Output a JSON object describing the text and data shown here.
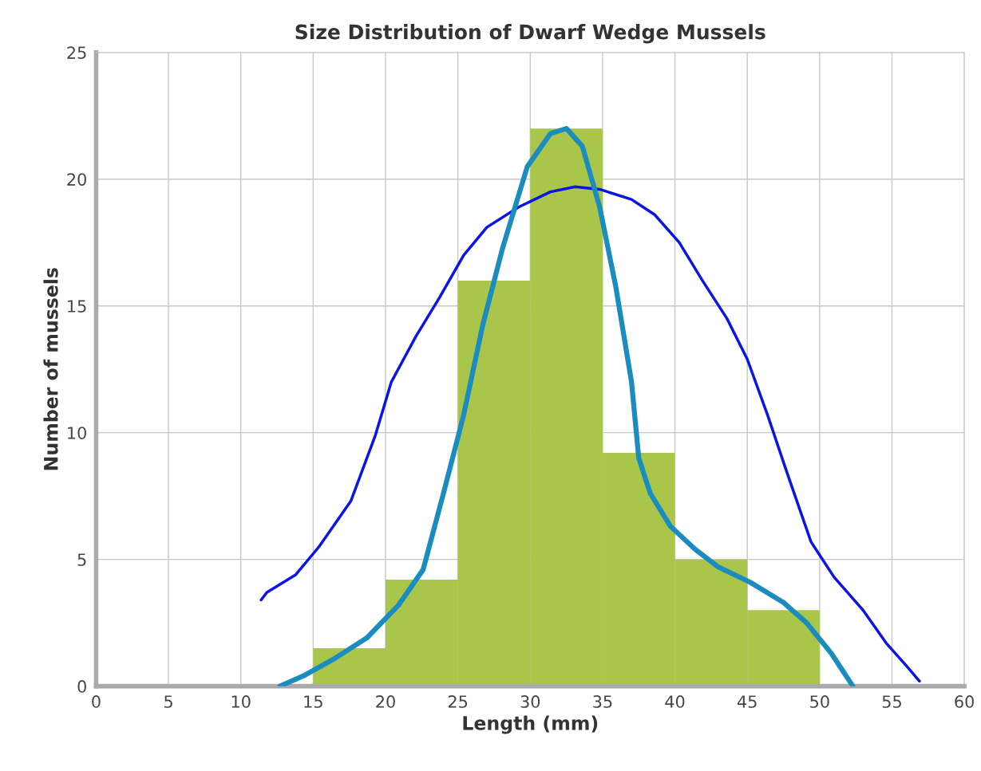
{
  "chart_data": {
    "type": "histogram",
    "title": "Size Distribution of Dwarf Wedge Mussels",
    "xlabel": "Length (mm)",
    "ylabel": "Number of mussels",
    "bins": [
      15,
      20,
      25,
      30,
      35,
      40,
      45,
      50
    ],
    "values": [
      1.5,
      4.2,
      16,
      22,
      9.2,
      5,
      3
    ],
    "color": "#a9c64a",
    "series": [
      {
        "type": "line",
        "color": "#0a14e6",
        "x": [
          11.4,
          11.8,
          13.8,
          15.4,
          17.6,
          19.3,
          20.4,
          22.1,
          23.7,
          25.4,
          27.0,
          29.2,
          31.4,
          33.1,
          34.8,
          37.0,
          38.6,
          40.3,
          41.9,
          43.6,
          45.0,
          46.4,
          47.7,
          49.4,
          51.0,
          53.0,
          54.6,
          56.0,
          56.9
        ],
        "values": [
          3.4,
          3.7,
          4.4,
          5.5,
          7.3,
          9.9,
          12.0,
          13.8,
          15.3,
          17.0,
          18.1,
          18.9,
          19.5,
          19.7,
          19.6,
          19.2,
          18.6,
          17.5,
          16.0,
          14.5,
          12.9,
          10.7,
          8.5,
          5.7,
          4.3,
          3.0,
          1.7,
          0.8,
          0.2
        ]
      },
      {
        "type": "line",
        "color": "#1a8cbf",
        "x": [
          12.7,
          14.3,
          16.5,
          18.7,
          20.9,
          22.6,
          24.0,
          25.4,
          26.7,
          28.1,
          29.8,
          31.4,
          32.5,
          33.6,
          34.8,
          35.9,
          37.0,
          37.5,
          38.3,
          39.7,
          41.4,
          43.0,
          45.2,
          47.5,
          49.1,
          50.8,
          52.3
        ],
        "values": [
          0,
          0.4,
          1.1,
          1.9,
          3.2,
          4.6,
          7.6,
          10.7,
          14.2,
          17.3,
          20.5,
          21.8,
          22.0,
          21.3,
          18.9,
          15.8,
          12.0,
          9.0,
          7.6,
          6.3,
          5.4,
          4.7,
          4.1,
          3.3,
          2.5,
          1.3,
          0
        ]
      }
    ],
    "xlim": [
      0,
      60
    ],
    "xticks": [
      0,
      5,
      10,
      15,
      20,
      25,
      30,
      35,
      40,
      45,
      50,
      55,
      60
    ],
    "ylim": [
      0,
      25
    ],
    "yticks": [
      0,
      5,
      10,
      15,
      20,
      25
    ],
    "grid": true
  }
}
